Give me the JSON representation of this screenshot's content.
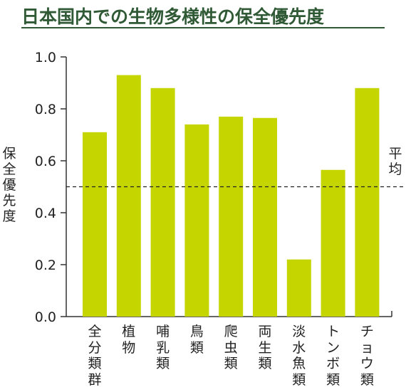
{
  "title": "日本国内での生物多様性の保全優先度",
  "chart_data": {
    "type": "bar",
    "title": "日本国内での生物多様性の保全優先度",
    "ylabel": "保全優先度",
    "xlabel": "",
    "ylim": [
      0,
      1.0
    ],
    "yticks": [
      "0.0",
      "0.2",
      "0.4",
      "0.6",
      "0.8",
      "1.0"
    ],
    "categories": [
      "全分類群",
      "植物",
      "哺乳類",
      "鳥類",
      "爬虫類",
      "両生類",
      "淡水魚類",
      "トンボ類",
      "チョウ類"
    ],
    "values": [
      0.71,
      0.93,
      0.88,
      0.74,
      0.77,
      0.765,
      0.22,
      0.565,
      0.88
    ],
    "reference_line": {
      "value": 0.5,
      "label": "平均",
      "style": "dashed"
    },
    "grid": false,
    "bar_color": "#c5d500"
  }
}
